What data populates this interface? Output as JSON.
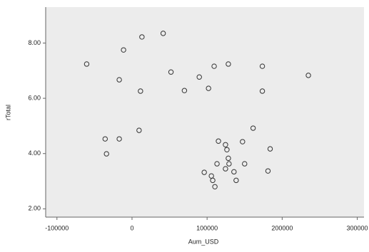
{
  "chart_data": {
    "type": "scatter",
    "x_label": "Aum_USD",
    "y_label": "rTotal",
    "x": [
      -60400,
      13200,
      41500,
      -11300,
      -17000,
      11300,
      51900,
      69800,
      89600,
      101900,
      109400,
      128300,
      173600,
      234900,
      173600,
      -35800,
      -17000,
      9400,
      -34000,
      161300,
      115100,
      124500,
      126400,
      147200,
      184000,
      128300,
      129200,
      113200,
      150000,
      96200,
      105700,
      107500,
      135800,
      124500,
      138700,
      181100,
      110400
    ],
    "y": [
      7.24,
      8.22,
      8.35,
      7.75,
      6.67,
      6.26,
      6.95,
      6.28,
      6.77,
      6.36,
      7.16,
      7.24,
      7.16,
      6.83,
      6.26,
      4.53,
      4.53,
      4.84,
      3.99,
      4.92,
      4.45,
      4.32,
      4.14,
      4.43,
      4.17,
      3.83,
      3.63,
      3.63,
      3.63,
      3.32,
      3.19,
      3.03,
      3.34,
      3.45,
      3.03,
      3.37,
      2.8
    ],
    "color": "#333333",
    "background": "#ececec",
    "xlim": [
      -115000,
      309000
    ],
    "xticks": [
      -100000,
      0,
      100000,
      200000,
      300000
    ],
    "ylim": [
      1.7,
      9.3
    ],
    "yticks": [
      {
        "value": 8,
        "label": "8.00"
      },
      {
        "value": 6,
        "label": "6.00"
      },
      {
        "value": 4,
        "label": "4.00"
      },
      {
        "value": 2,
        "label": "2.00"
      }
    ]
  }
}
